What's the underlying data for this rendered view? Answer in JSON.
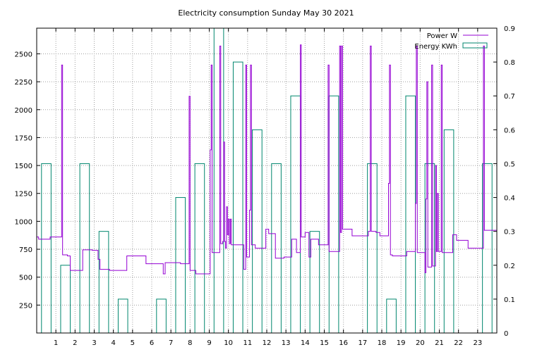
{
  "chart_data": {
    "type": "line",
    "title": "Electricity consumption Sunday May 30 2021",
    "x_ticks": [
      "1",
      "2",
      "3",
      "4",
      "5",
      "6",
      "7",
      "8",
      "9",
      "10",
      "11",
      "12",
      "13",
      "14",
      "15",
      "16",
      "17",
      "18",
      "19",
      "20",
      "21",
      "22",
      "23"
    ],
    "xlim": [
      0,
      24
    ],
    "y_left": {
      "ticks": [
        "250",
        "500",
        "750",
        "1000",
        "1250",
        "1500",
        "1750",
        "2000",
        "2250",
        "2500"
      ],
      "ylim": [
        0,
        2730
      ]
    },
    "y_right": {
      "ticks": [
        "0",
        "0.1",
        "0.2",
        "0.3",
        "0.4",
        "0.5",
        "0.6",
        "0.7",
        "0.8",
        "0.9"
      ],
      "ylim": [
        0,
        0.9
      ]
    },
    "grid": true,
    "legend_position": "top-right",
    "series": [
      {
        "name": "Power W",
        "axis": "left",
        "style": "steps",
        "color": "#9400d3",
        "points": [
          [
            0,
            860
          ],
          [
            0.1,
            840
          ],
          [
            0.7,
            860
          ],
          [
            1.2,
            860
          ],
          [
            1.3,
            2400
          ],
          [
            1.35,
            700
          ],
          [
            1.6,
            690
          ],
          [
            1.75,
            560
          ],
          [
            2.2,
            560
          ],
          [
            2.4,
            745
          ],
          [
            2.9,
            740
          ],
          [
            3.2,
            660
          ],
          [
            3.3,
            570
          ],
          [
            3.8,
            560
          ],
          [
            4.6,
            560
          ],
          [
            4.7,
            690
          ],
          [
            5.6,
            690
          ],
          [
            5.7,
            620
          ],
          [
            6.5,
            620
          ],
          [
            6.6,
            530
          ],
          [
            6.7,
            630
          ],
          [
            7.4,
            630
          ],
          [
            7.5,
            620
          ],
          [
            7.9,
            620
          ],
          [
            7.95,
            2120
          ],
          [
            8.0,
            560
          ],
          [
            8.2,
            560
          ],
          [
            8.3,
            530
          ],
          [
            8.9,
            530
          ],
          [
            9.0,
            530
          ],
          [
            9.05,
            1640
          ],
          [
            9.1,
            2400
          ],
          [
            9.15,
            720
          ],
          [
            9.5,
            720
          ],
          [
            9.55,
            2570
          ],
          [
            9.6,
            800
          ],
          [
            9.7,
            820
          ],
          [
            9.75,
            1710
          ],
          [
            9.8,
            820
          ],
          [
            9.85,
            760
          ],
          [
            9.9,
            1130
          ],
          [
            9.95,
            880
          ],
          [
            10.0,
            1020
          ],
          [
            10.05,
            800
          ],
          [
            10.1,
            1020
          ],
          [
            10.15,
            790
          ],
          [
            10.6,
            790
          ],
          [
            10.8,
            570
          ],
          [
            10.9,
            2400
          ],
          [
            10.95,
            680
          ],
          [
            11.1,
            1100
          ],
          [
            11.15,
            2400
          ],
          [
            11.2,
            790
          ],
          [
            11.4,
            760
          ],
          [
            11.9,
            760
          ],
          [
            11.95,
            930
          ],
          [
            12.1,
            890
          ],
          [
            12.4,
            890
          ],
          [
            12.45,
            670
          ],
          [
            12.8,
            670
          ],
          [
            12.9,
            680
          ],
          [
            13.2,
            680
          ],
          [
            13.3,
            840
          ],
          [
            13.5,
            840
          ],
          [
            13.55,
            720
          ],
          [
            13.7,
            720
          ],
          [
            13.75,
            2580
          ],
          [
            13.8,
            860
          ],
          [
            14.0,
            900
          ],
          [
            14.2,
            680
          ],
          [
            14.3,
            840
          ],
          [
            14.6,
            840
          ],
          [
            14.7,
            790
          ],
          [
            15.1,
            790
          ],
          [
            15.2,
            2400
          ],
          [
            15.25,
            730
          ],
          [
            15.7,
            730
          ],
          [
            15.8,
            2570
          ],
          [
            15.85,
            900
          ],
          [
            15.9,
            2570
          ],
          [
            15.95,
            930
          ],
          [
            16.4,
            930
          ],
          [
            16.45,
            870
          ],
          [
            17.2,
            870
          ],
          [
            17.3,
            910
          ],
          [
            17.4,
            2570
          ],
          [
            17.45,
            910
          ],
          [
            17.7,
            900
          ],
          [
            17.9,
            870
          ],
          [
            18.3,
            870
          ],
          [
            18.35,
            1340
          ],
          [
            18.4,
            2400
          ],
          [
            18.45,
            700
          ],
          [
            18.55,
            690
          ],
          [
            19.2,
            690
          ],
          [
            19.3,
            730
          ],
          [
            19.7,
            730
          ],
          [
            19.75,
            1160
          ],
          [
            19.8,
            2570
          ],
          [
            19.85,
            720
          ],
          [
            20.2,
            720
          ],
          [
            20.25,
            540
          ],
          [
            20.3,
            1200
          ],
          [
            20.35,
            2250
          ],
          [
            20.4,
            590
          ],
          [
            20.6,
            2400
          ],
          [
            20.65,
            600
          ],
          [
            20.8,
            1500
          ],
          [
            20.85,
            730
          ],
          [
            20.9,
            1250
          ],
          [
            20.95,
            730
          ],
          [
            21.1,
            2400
          ],
          [
            21.15,
            720
          ],
          [
            21.6,
            720
          ],
          [
            21.7,
            880
          ],
          [
            21.9,
            830
          ],
          [
            22.4,
            830
          ],
          [
            22.5,
            760
          ],
          [
            23.2,
            760
          ],
          [
            23.3,
            2570
          ],
          [
            23.35,
            920
          ],
          [
            23.9,
            920
          ],
          [
            24,
            860
          ]
        ]
      },
      {
        "name": "Energy KWh",
        "axis": "right",
        "style": "boxes",
        "color": "#00866e",
        "values": [
          0.5,
          0.2,
          0.5,
          0.3,
          0.1,
          0,
          0.1,
          0.4,
          0.5,
          0.9,
          0.8,
          0.6,
          0.5,
          0.7,
          0.3,
          0.7,
          0,
          0.5,
          0.1,
          0.7,
          0.5,
          0.6,
          0,
          0.5
        ]
      }
    ]
  }
}
